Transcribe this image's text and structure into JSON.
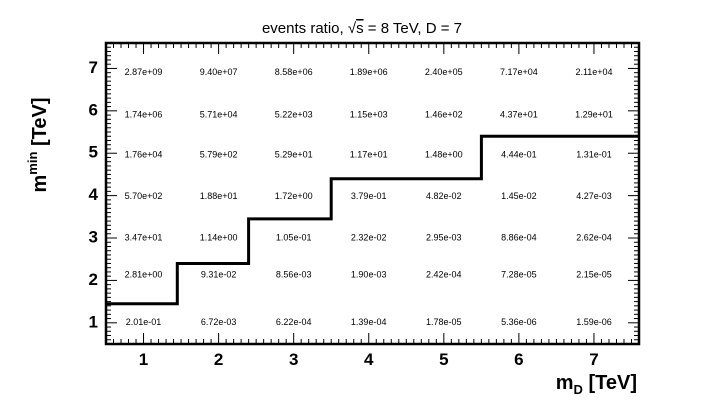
{
  "chart_data": {
    "type": "heatmap",
    "title": {
      "prefix": "events ratio, ",
      "sqrt": "√",
      "energy_var": "s",
      "suffix": " = 8 TeV, D = 7"
    },
    "xlabel": {
      "main": "m",
      "sub": "D",
      "unit": " [TeV]"
    },
    "ylabel": {
      "main": "m",
      "sup": "min",
      "unit": " [TeV]"
    },
    "x": [
      1,
      2,
      3,
      4,
      5,
      6,
      7
    ],
    "y": [
      1,
      2,
      3,
      4,
      5,
      6,
      7
    ],
    "xlim": [
      0.5,
      7.6
    ],
    "ylim": [
      0.5,
      7.6
    ],
    "x_ticks": [
      "1",
      "2",
      "3",
      "4",
      "5",
      "6",
      "7"
    ],
    "y_ticks": [
      "1",
      "2",
      "3",
      "4",
      "5",
      "6",
      "7"
    ],
    "cells": [
      [
        "2.01e-01",
        "6.72e-03",
        "6.22e-04",
        "1.39e-04",
        "1.78e-05",
        "5.36e-06",
        "1.59e-06"
      ],
      [
        "2.81e+00",
        "9.31e-02",
        "8.56e-03",
        "1.90e-03",
        "2.42e-04",
        "7.28e-05",
        "2.15e-05"
      ],
      [
        "3.47e+01",
        "1.14e+00",
        "1.05e-01",
        "2.32e-02",
        "2.95e-03",
        "8.86e-04",
        "2.62e-04"
      ],
      [
        "5.70e+02",
        "1.88e+01",
        "1.72e+00",
        "3.79e-01",
        "4.82e-02",
        "1.45e-02",
        "4.27e-03"
      ],
      [
        "1.76e+04",
        "5.79e+02",
        "5.29e+01",
        "1.17e+01",
        "1.48e+00",
        "4.44e-01",
        "1.31e-01"
      ],
      [
        "1.74e+06",
        "5.71e+04",
        "5.22e+03",
        "1.15e+03",
        "1.46e+02",
        "4.37e+01",
        "1.29e+01"
      ],
      [
        "2.87e+09",
        "9.40e+07",
        "8.58e+06",
        "1.89e+06",
        "2.40e+05",
        "7.17e+04",
        "2.11e+04"
      ]
    ],
    "cell_label_y_offsets": [
      0,
      0.12,
      0,
      -0.02,
      -0.05,
      -0.1,
      -0.1
    ],
    "boundary": [
      [
        0.5,
        1.45
      ],
      [
        1.45,
        1.45
      ],
      [
        1.45,
        2.4
      ],
      [
        2.4,
        2.4
      ],
      [
        2.4,
        3.45
      ],
      [
        3.5,
        3.45
      ],
      [
        3.5,
        4.4
      ],
      [
        5.5,
        4.4
      ],
      [
        5.5,
        5.4
      ],
      [
        7.6,
        5.4
      ]
    ]
  }
}
